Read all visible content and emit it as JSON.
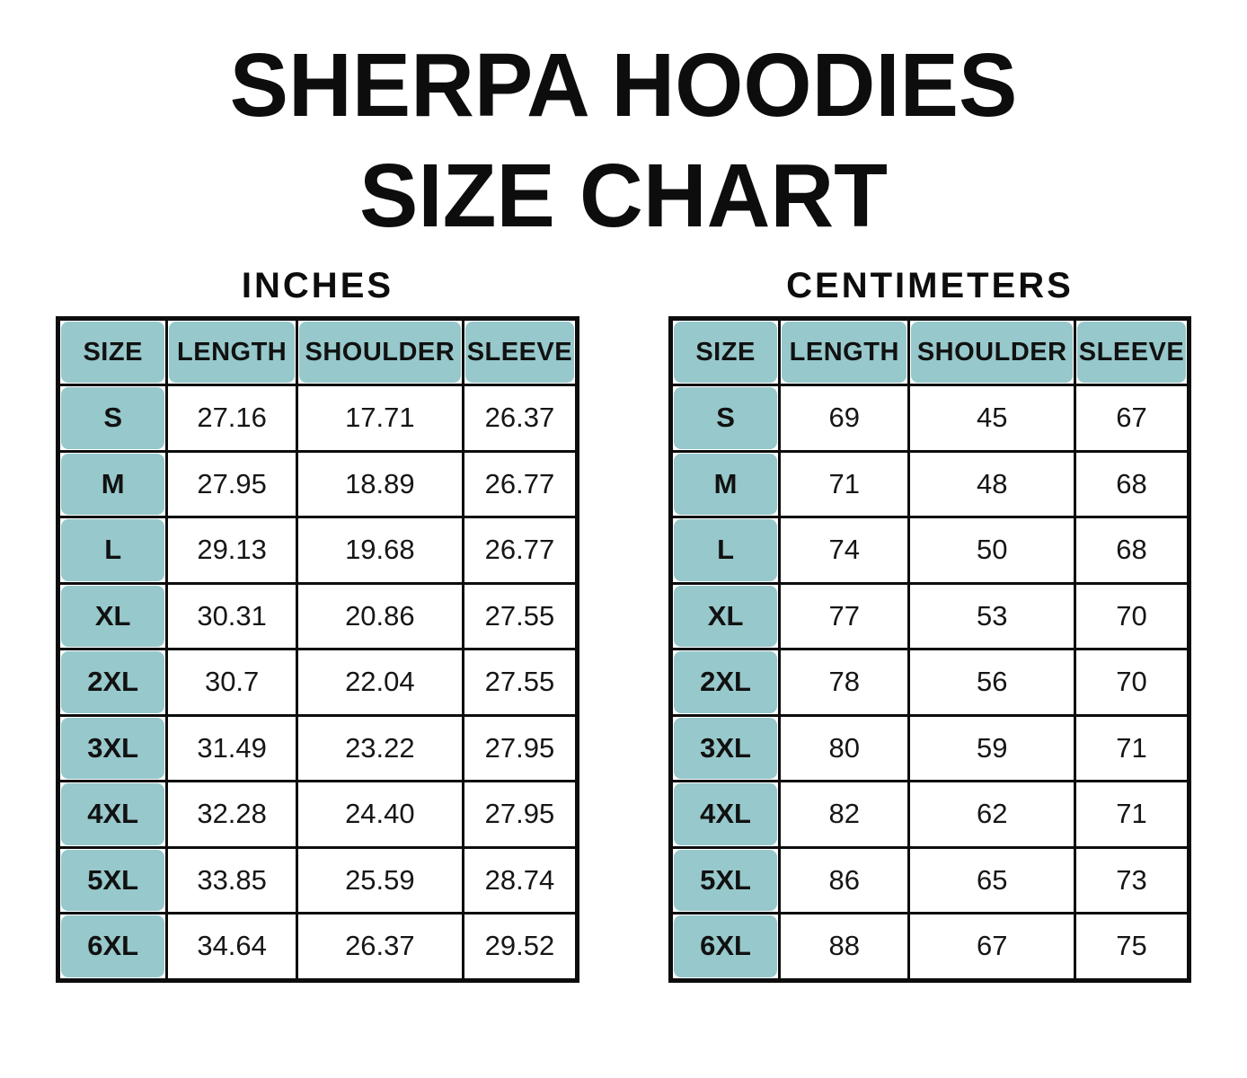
{
  "title": {
    "line1": "SHERPA HOODIES",
    "line2": "SIZE CHART"
  },
  "colors": {
    "header_fill": "#97C8CB",
    "border": "#0d0d0d",
    "background": "#ffffff",
    "text": "#111111"
  },
  "tables": [
    {
      "unit_label": "INCHES",
      "headers": [
        "SIZE",
        "LENGTH",
        "SHOULDER",
        "SLEEVE"
      ],
      "rows": [
        [
          "S",
          "27.16",
          "17.71",
          "26.37"
        ],
        [
          "M",
          "27.95",
          "18.89",
          "26.77"
        ],
        [
          "L",
          "29.13",
          "19.68",
          "26.77"
        ],
        [
          "XL",
          "30.31",
          "20.86",
          "27.55"
        ],
        [
          "2XL",
          "30.7",
          "22.04",
          "27.55"
        ],
        [
          "3XL",
          "31.49",
          "23.22",
          "27.95"
        ],
        [
          "4XL",
          "32.28",
          "24.40",
          "27.95"
        ],
        [
          "5XL",
          "33.85",
          "25.59",
          "28.74"
        ],
        [
          "6XL",
          "34.64",
          "26.37",
          "29.52"
        ]
      ]
    },
    {
      "unit_label": "CENTIMETERS",
      "headers": [
        "SIZE",
        "LENGTH",
        "SHOULDER",
        "SLEEVE"
      ],
      "rows": [
        [
          "S",
          "69",
          "45",
          "67"
        ],
        [
          "M",
          "71",
          "48",
          "68"
        ],
        [
          "L",
          "74",
          "50",
          "68"
        ],
        [
          "XL",
          "77",
          "53",
          "70"
        ],
        [
          "2XL",
          "78",
          "56",
          "70"
        ],
        [
          "3XL",
          "80",
          "59",
          "71"
        ],
        [
          "4XL",
          "82",
          "62",
          "71"
        ],
        [
          "5XL",
          "86",
          "65",
          "73"
        ],
        [
          "6XL",
          "88",
          "67",
          "75"
        ]
      ]
    }
  ],
  "chart_data": [
    {
      "type": "table",
      "title": "SHERPA HOODIES SIZE CHART — INCHES",
      "columns": [
        "SIZE",
        "LENGTH",
        "SHOULDER",
        "SLEEVE"
      ],
      "rows": [
        [
          "S",
          27.16,
          17.71,
          26.37
        ],
        [
          "M",
          27.95,
          18.89,
          26.77
        ],
        [
          "L",
          29.13,
          19.68,
          26.77
        ],
        [
          "XL",
          30.31,
          20.86,
          27.55
        ],
        [
          "2XL",
          30.7,
          22.04,
          27.55
        ],
        [
          "3XL",
          31.49,
          23.22,
          27.95
        ],
        [
          "4XL",
          32.28,
          24.4,
          27.95
        ],
        [
          "5XL",
          33.85,
          25.59,
          28.74
        ],
        [
          "6XL",
          34.64,
          26.37,
          29.52
        ]
      ]
    },
    {
      "type": "table",
      "title": "SHERPA HOODIES SIZE CHART — CENTIMETERS",
      "columns": [
        "SIZE",
        "LENGTH",
        "SHOULDER",
        "SLEEVE"
      ],
      "rows": [
        [
          "S",
          69,
          45,
          67
        ],
        [
          "M",
          71,
          48,
          68
        ],
        [
          "L",
          74,
          50,
          68
        ],
        [
          "XL",
          77,
          53,
          70
        ],
        [
          "2XL",
          78,
          56,
          70
        ],
        [
          "3XL",
          80,
          59,
          71
        ],
        [
          "4XL",
          82,
          62,
          71
        ],
        [
          "5XL",
          86,
          65,
          73
        ],
        [
          "6XL",
          88,
          67,
          75
        ]
      ]
    }
  ]
}
